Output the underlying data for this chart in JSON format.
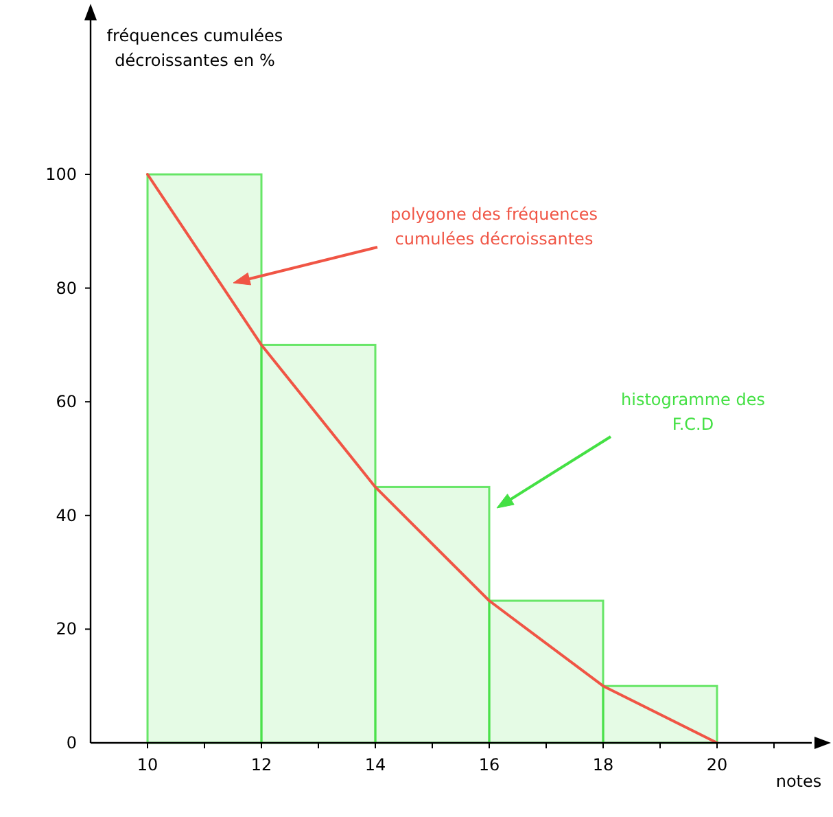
{
  "chart_data": {
    "type": "histogram",
    "xlabel": "notes",
    "ylabel": "fréquences cumulées\ndécroissantes en %",
    "bins": [
      10,
      12,
      14,
      16,
      18,
      20
    ],
    "values": [
      100,
      70,
      45,
      25,
      10
    ],
    "color": "#44e044",
    "series": [
      {
        "type": "line",
        "x": [
          10,
          12,
          14,
          16,
          18,
          20
        ],
        "values": [
          100,
          70,
          45,
          25,
          10,
          0
        ],
        "color": "#f05545"
      }
    ],
    "xlim": [
      9,
      22
    ],
    "ylim": [
      0,
      130
    ],
    "xticks": [
      10,
      {
        "value": 11,
        "label": null
      },
      12,
      {
        "value": 13,
        "label": null
      },
      14,
      {
        "value": 15,
        "label": null
      },
      16,
      {
        "value": 17,
        "label": null
      },
      18,
      {
        "value": 19,
        "label": null
      },
      20,
      {
        "value": 21,
        "label": null
      }
    ],
    "yticks": [
      0,
      20,
      40,
      60,
      80,
      100
    ],
    "annotations": [
      "polygone des fréquences\ncumulées décroissantes",
      "histogramme des\nF.C.D"
    ],
    "grid": false
  }
}
